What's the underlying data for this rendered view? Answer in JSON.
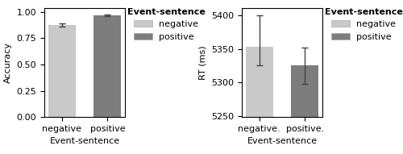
{
  "chart_data": [
    {
      "type": "bar",
      "xlabel": "Event-sentence",
      "ylabel": "Accuracy",
      "categories": [
        "negative",
        "positive"
      ],
      "values": [
        0.875,
        0.97
      ],
      "errors": [
        0.013,
        0.008
      ],
      "colors": [
        "#c9c9c9",
        "#7d7d7d"
      ],
      "ylim": [
        0.0,
        1.04
      ],
      "yticks": [
        {
          "value": 0.0,
          "label": "0.00"
        },
        0.25,
        {
          "value": 0.5,
          "label": "0.50"
        },
        0.75,
        {
          "value": 1.0,
          "label": "1.00"
        }
      ],
      "legend": "upper left",
      "legend_title": "Event-sentence",
      "legend_entries": [
        {
          "label": "negative",
          "color": "#c9c9c9"
        },
        {
          "label": "positive",
          "color": "#7d7d7d"
        }
      ]
    },
    {
      "type": "bar",
      "xlabel": "Event-sentence",
      "ylabel": "RT (ms)",
      "categories": [
        "negative.",
        "positive."
      ],
      "values": [
        5353,
        5325
      ],
      "errors_upper": [
        48,
        27
      ],
      "errors_lower": [
        28,
        27
      ],
      "colors": [
        "#c9c9c9",
        "#7d7d7d"
      ],
      "ylim": [
        5248,
        5412
      ],
      "yticks": [
        5250,
        5300,
        5350,
        5400
      ],
      "legend": "upper left",
      "legend_title": "Event-sentence",
      "legend_entries": [
        {
          "label": "negative",
          "color": "#c9c9c9"
        },
        {
          "label": "positive",
          "color": "#7d7d7d"
        }
      ]
    }
  ]
}
